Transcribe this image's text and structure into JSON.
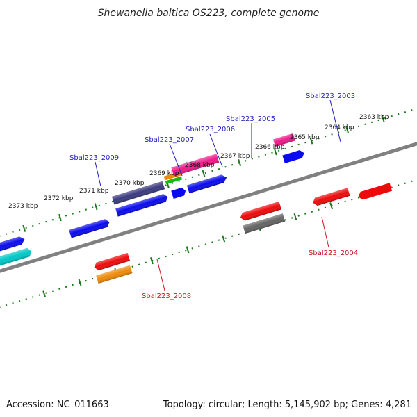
{
  "title": "Shewanella baltica OS223, complete genome",
  "footer": {
    "accession": "Accession: NC_011663",
    "summary": "Topology: circular; Length: 5,145,902 bp; Genes: 4,281"
  },
  "colors": {
    "backbone": "#808080",
    "ticks": "#1a7a1a",
    "label_forward": "#1f1fbf",
    "label_reverse": "#c8141e"
  },
  "tick_labels": [
    "2373 kbp",
    "2372 kbp",
    "2371 kbp",
    "2370 kbp",
    "2369 kbp",
    "2368 kbp",
    "2367 kbp",
    "2366 kbp",
    "2365 kbp",
    "2364 kbp",
    "2363 kbp"
  ],
  "gene_labels": {
    "sbal2003": "Sbal223_2003",
    "sbal2004": "Sbal223_2004",
    "sbal2005": "Sbal223_2005",
    "sbal2006": "Sbal223_2006",
    "sbal2007": "Sbal223_2007",
    "sbal2008": "Sbal223_2008",
    "sbal2009": "Sbal223_2009"
  },
  "features": [
    {
      "name": "cyan-feature",
      "color": "#00c8c8"
    },
    {
      "name": "blue-feature",
      "color": "#0a0aee"
    },
    {
      "name": "navy-feature",
      "color": "#3a3a80"
    },
    {
      "name": "red-feature",
      "color": "#ee0a0a"
    },
    {
      "name": "orange-feature",
      "color": "#ee8a0a"
    },
    {
      "name": "pink-feature",
      "color": "#ee1a8a"
    },
    {
      "name": "green-feature",
      "color": "#1ab81a"
    },
    {
      "name": "gray-feature",
      "color": "#646464"
    }
  ]
}
